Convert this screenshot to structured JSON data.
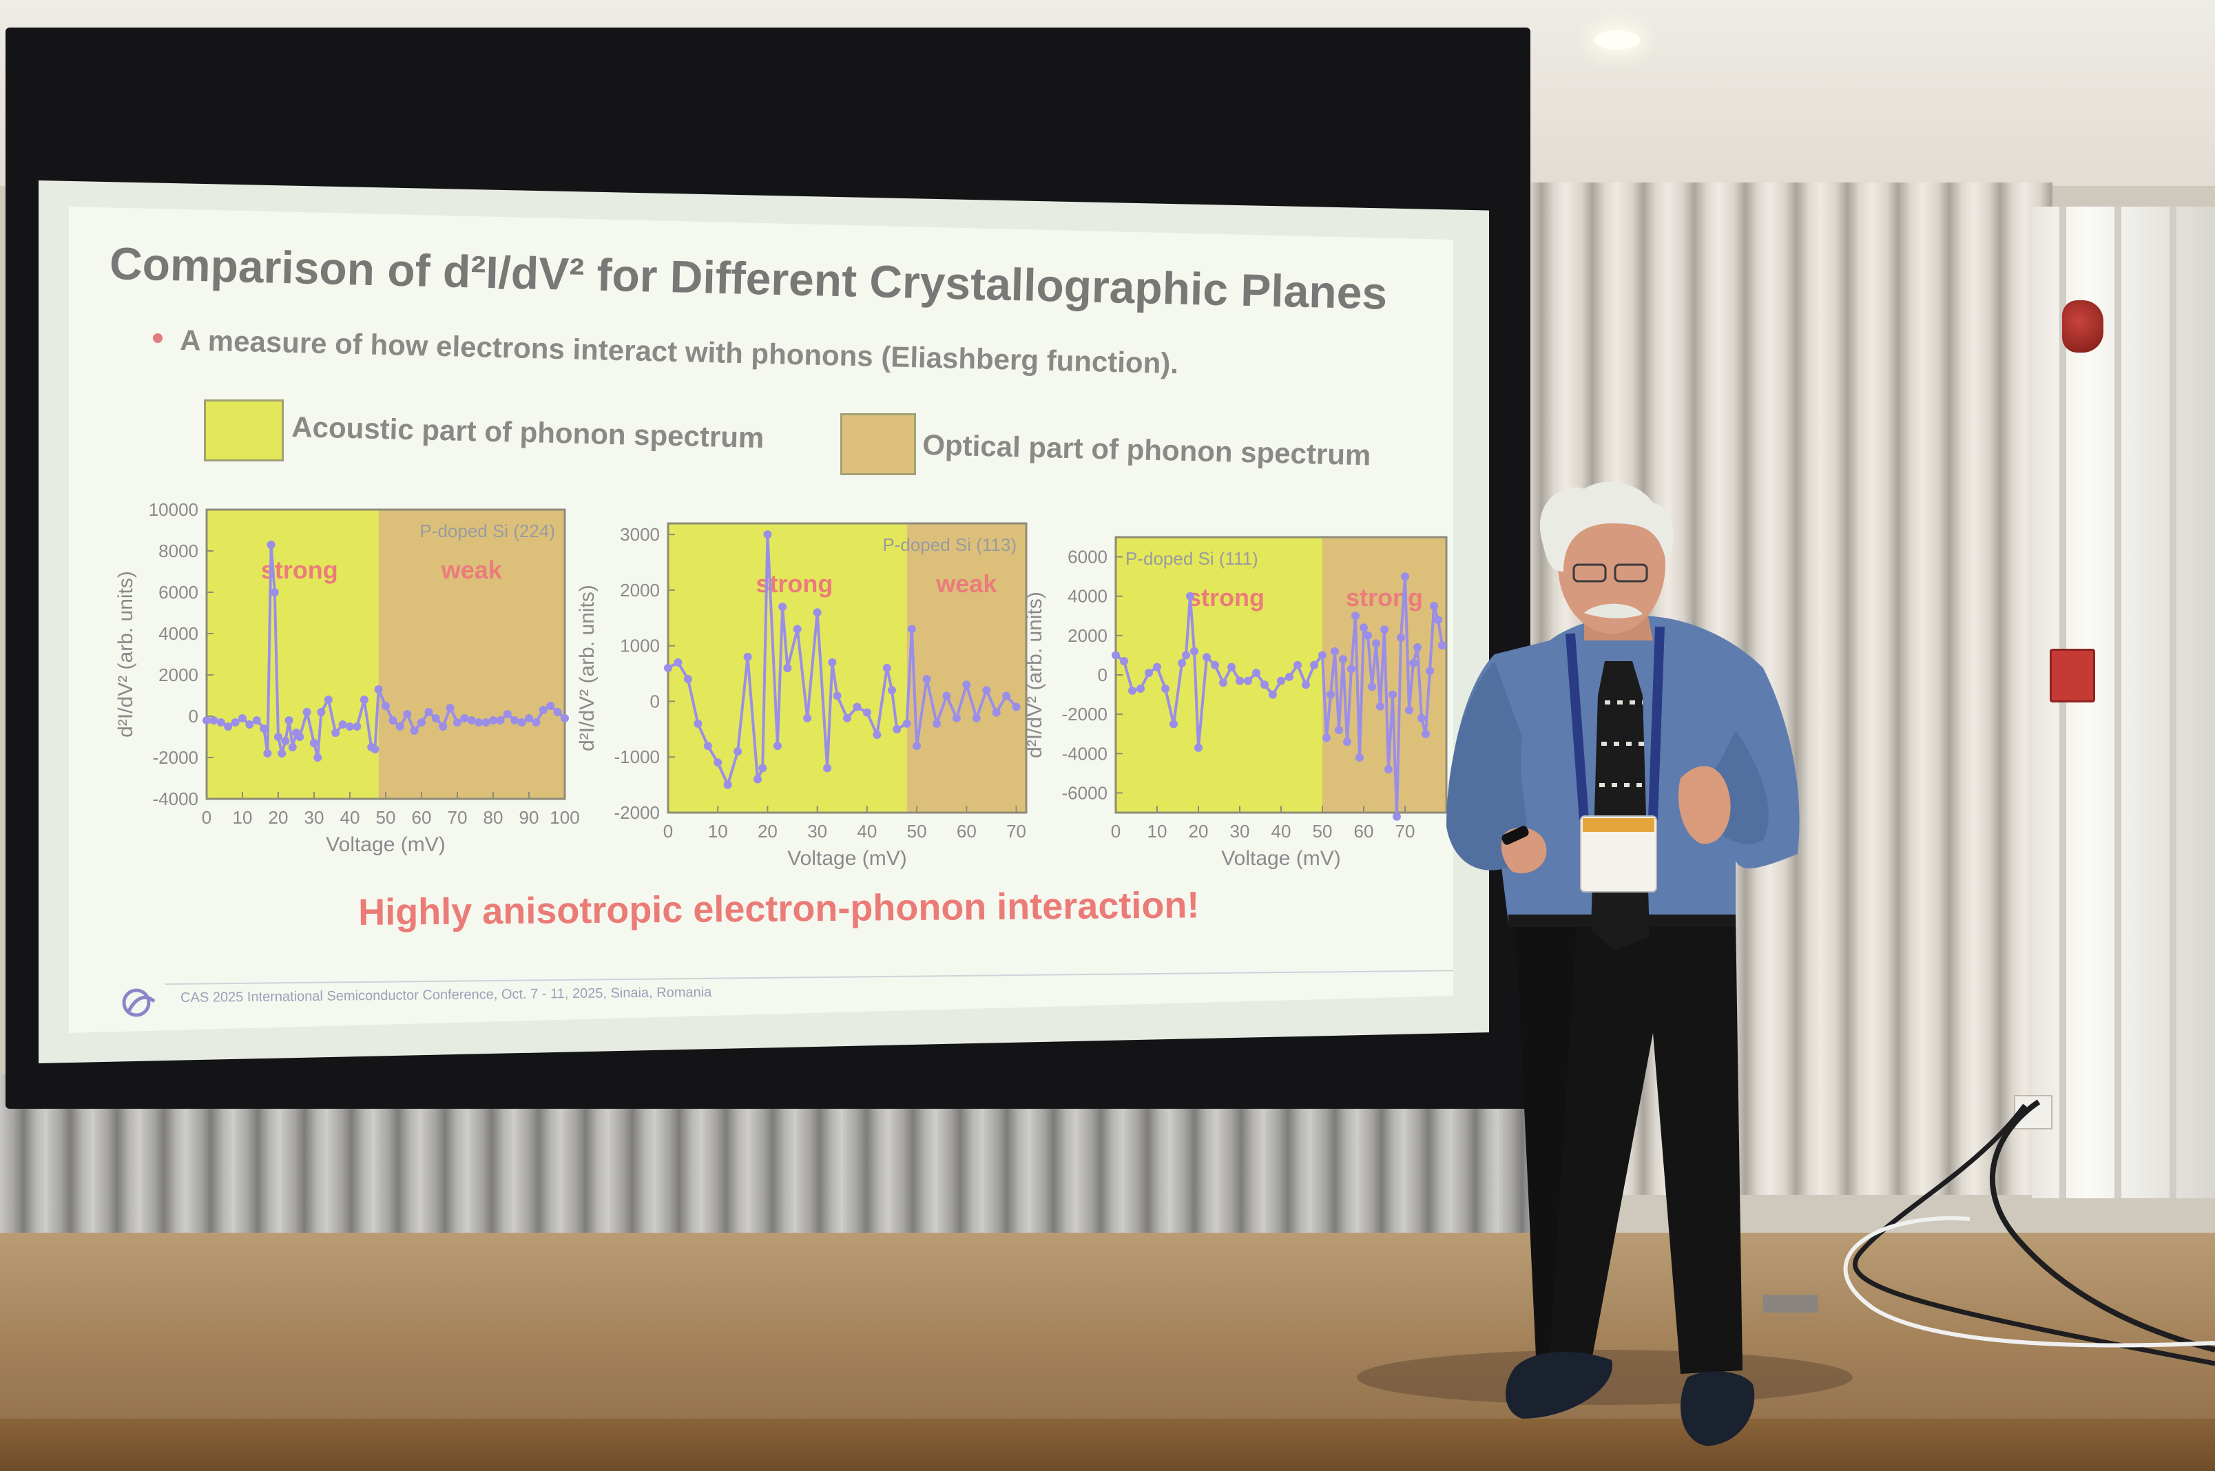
{
  "slide": {
    "title": "Comparison of d²I/dV² for Different Crystallographic Planes",
    "bullet": "A measure of how electrons interact with phonons (Eliashberg function).",
    "legend": [
      {
        "label": "Acoustic part of phonon spectrum",
        "color": "#e3e85a"
      },
      {
        "label": "Optical part of phonon spectrum",
        "color": "#dcc07a"
      }
    ],
    "conclusion": "Highly anisotropic electron-phonon interaction!",
    "footer": "CAS 2025 International Semiconductor Conference, Oct. 7 - 11, 2025, Sinaia, Romania",
    "colors": {
      "acoustic": "#e3e85a",
      "optical": "#dcc07a",
      "series": "#9a8ee8",
      "label": "#eb7b7c"
    }
  },
  "chart_data": [
    {
      "type": "line",
      "annotation": "P-doped Si (224)",
      "xlabel": "Voltage (mV)",
      "ylabel": "d²I/dV² (arb. units)",
      "xlim": [
        0,
        100
      ],
      "ylim": [
        -4000,
        10000
      ],
      "xticks": [
        "0",
        "10",
        "20",
        "30",
        "40",
        "50",
        "60",
        "70",
        "80",
        "90",
        "100"
      ],
      "yticks": [
        "-4000",
        "-2000",
        "0",
        "2000",
        "4000",
        "6000",
        "8000",
        "10000"
      ],
      "acoustic_range": [
        0,
        48
      ],
      "optical_range": [
        48,
        100
      ],
      "region_labels": [
        "strong",
        "weak"
      ],
      "x": [
        0,
        2,
        4,
        6,
        8,
        10,
        12,
        14,
        16,
        17,
        18,
        19,
        20,
        21,
        22,
        23,
        24,
        25,
        26,
        28,
        30,
        31,
        32,
        34,
        36,
        38,
        40,
        42,
        44,
        46,
        47,
        48,
        50,
        52,
        54,
        56,
        58,
        60,
        62,
        64,
        66,
        68,
        70,
        72,
        74,
        76,
        78,
        80,
        82,
        84,
        86,
        88,
        90,
        92,
        94,
        96,
        98,
        100
      ],
      "y": [
        -200,
        -200,
        -300,
        -500,
        -300,
        -100,
        -400,
        -200,
        -600,
        -1800,
        8300,
        6000,
        -1000,
        -1800,
        -1200,
        -200,
        -1500,
        -800,
        -1000,
        200,
        -1300,
        -2000,
        200,
        800,
        -800,
        -400,
        -500,
        -500,
        800,
        -1500,
        -1600,
        1300,
        500,
        -200,
        -500,
        100,
        -700,
        -300,
        200,
        -100,
        -500,
        400,
        -300,
        -100,
        -200,
        -300,
        -300,
        -200,
        -200,
        100,
        -200,
        -300,
        -100,
        -300,
        300,
        500,
        200,
        -100
      ]
    },
    {
      "type": "line",
      "annotation": "P-doped Si (113)",
      "xlabel": "Voltage (mV)",
      "ylabel": "d²I/dV² (arb. units)",
      "xlim": [
        0,
        72
      ],
      "ylim": [
        -2000,
        3200
      ],
      "xticks": [
        "0",
        "10",
        "20",
        "30",
        "40",
        "50",
        "60",
        "70"
      ],
      "yticks": [
        "-2000",
        "-1000",
        "0",
        "1000",
        "2000",
        "3000"
      ],
      "acoustic_range": [
        0,
        48
      ],
      "optical_range": [
        48,
        72
      ],
      "region_labels": [
        "strong",
        "weak"
      ],
      "x": [
        0,
        2,
        4,
        6,
        8,
        10,
        12,
        14,
        16,
        18,
        19,
        20,
        22,
        23,
        24,
        26,
        28,
        30,
        32,
        33,
        34,
        36,
        38,
        40,
        42,
        44,
        45,
        46,
        48,
        49,
        50,
        52,
        54,
        56,
        58,
        60,
        62,
        64,
        66,
        68,
        70
      ],
      "y": [
        600,
        700,
        400,
        -400,
        -800,
        -1100,
        -1500,
        -900,
        800,
        -1400,
        -1200,
        3000,
        -800,
        1700,
        600,
        1300,
        -300,
        1600,
        -1200,
        700,
        100,
        -300,
        -100,
        -200,
        -600,
        600,
        200,
        -500,
        -400,
        1300,
        -800,
        400,
        -400,
        100,
        -300,
        300,
        -300,
        200,
        -200,
        100,
        -100
      ]
    },
    {
      "type": "line",
      "annotation": "P-doped Si (111)",
      "xlabel": "Voltage (mV)",
      "ylabel": "d²I/dV² (arb. units)",
      "xlim": [
        0,
        80
      ],
      "ylim": [
        -7000,
        7000
      ],
      "xticks": [
        "0",
        "10",
        "20",
        "30",
        "40",
        "50",
        "60",
        "70"
      ],
      "yticks": [
        "-6000",
        "-4000",
        "-2000",
        "0",
        "2000",
        "4000",
        "6000"
      ],
      "acoustic_range": [
        0,
        50
      ],
      "optical_range": [
        50,
        80
      ],
      "region_labels": [
        "strong",
        "strong"
      ],
      "x": [
        0,
        2,
        4,
        6,
        8,
        10,
        12,
        14,
        16,
        17,
        18,
        19,
        20,
        22,
        24,
        26,
        28,
        30,
        32,
        34,
        36,
        38,
        40,
        42,
        44,
        46,
        48,
        50,
        51,
        52,
        53,
        54,
        55,
        56,
        57,
        58,
        59,
        60,
        61,
        62,
        63,
        64,
        65,
        66,
        67,
        68,
        69,
        70,
        71,
        72,
        73,
        74,
        75,
        76,
        77,
        78,
        79
      ],
      "y": [
        1000,
        700,
        -800,
        -700,
        100,
        400,
        -700,
        -2500,
        600,
        1000,
        4000,
        1200,
        -3700,
        900,
        500,
        -400,
        400,
        -300,
        -300,
        100,
        -500,
        -1000,
        -300,
        -100,
        500,
        -500,
        500,
        1000,
        -3200,
        -1000,
        1200,
        -2800,
        800,
        -3400,
        300,
        3000,
        -4200,
        2400,
        2000,
        -600,
        1600,
        -1600,
        2300,
        -4800,
        -1000,
        -7200,
        1900,
        5000,
        -1800,
        600,
        1400,
        -2200,
        -3000,
        200,
        3500,
        2800,
        1500
      ]
    }
  ]
}
